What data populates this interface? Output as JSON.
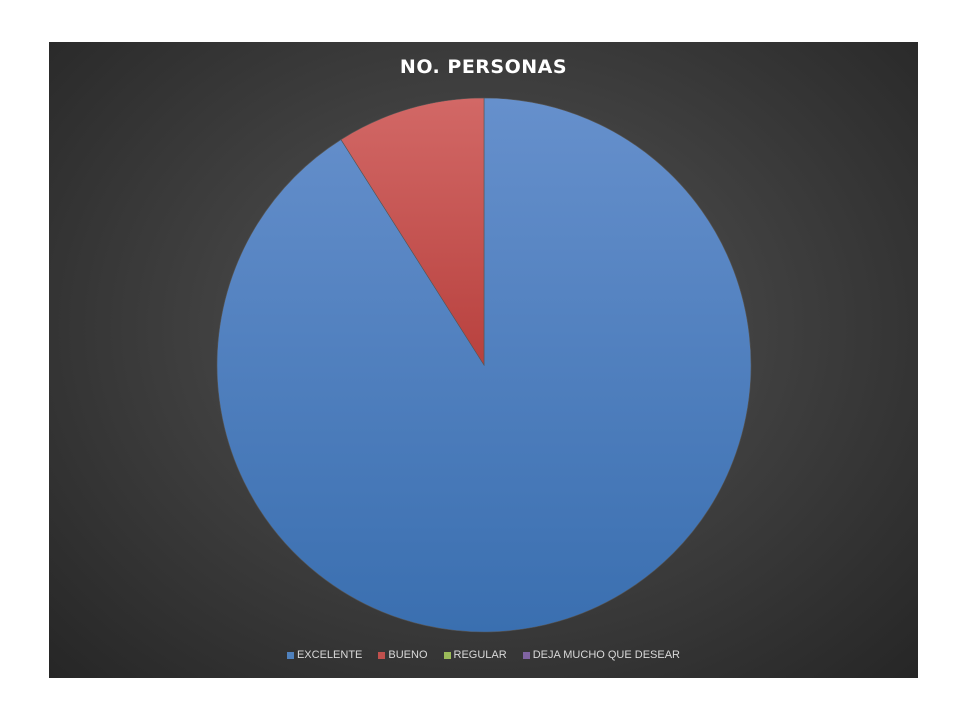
{
  "chart_data": {
    "type": "pie",
    "title": "NO. PERSONAS",
    "categories": [
      "EXCELENTE",
      "BUENO",
      "REGULAR",
      "DEJA MUCHO QUE DESEAR"
    ],
    "values": [
      91,
      9,
      0,
      0
    ],
    "colors": [
      "#4f81bd",
      "#c0504d",
      "#9bbb59",
      "#8064a2"
    ],
    "legend_position": "bottom",
    "start_angle_deg": 0,
    "direction": "clockwise"
  }
}
